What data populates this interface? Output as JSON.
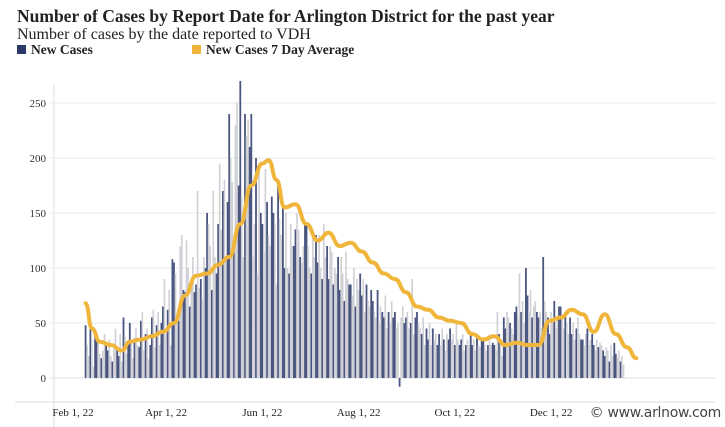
{
  "title": "Number of Cases by Report Date for Arlington District for the past year",
  "subtitle": "Number of cases by the date reported to VDH",
  "watermark": "© www.arlnow.com",
  "colors": {
    "new_cases": "#4a5580",
    "new_cases_alt": "#cfd0d6",
    "average": "#f0b63c",
    "grid": "#e8e8e8"
  },
  "chart_data": {
    "type": "bar",
    "legend": "top-left",
    "grid": true,
    "ylim": [
      0,
      270
    ],
    "xlim": [
      "2022-02-01",
      "2023-01-28"
    ],
    "y_ticks": [
      0,
      50,
      100,
      150,
      200,
      250
    ],
    "x_ticks": [
      {
        "date": "2022-02-01",
        "label": "Feb 1, 22"
      },
      {
        "date": "2022-04-01",
        "label": "Apr 1, 22"
      },
      {
        "date": "2022-06-01",
        "label": "Jun 1, 22"
      },
      {
        "date": "2022-08-01",
        "label": "Aug 1, 22"
      },
      {
        "date": "2022-10-01",
        "label": "Oct 1, 22"
      },
      {
        "date": "2022-12-01",
        "label": "Dec 1, 22"
      }
    ],
    "series": [
      {
        "name": "New Cases",
        "type": "bar",
        "start_date": "2022-02-09",
        "values": [
          48,
          30,
          20,
          45,
          35,
          10,
          40,
          40,
          35,
          22,
          18,
          25,
          40,
          30,
          25,
          35,
          20,
          15,
          30,
          45,
          28,
          20,
          40,
          15,
          55,
          38,
          22,
          30,
          50,
          35,
          18,
          36,
          45,
          30,
          28,
          52,
          60,
          25,
          40,
          45,
          17,
          30,
          55,
          62,
          28,
          48,
          60,
          30,
          50,
          65,
          90,
          40,
          62,
          80,
          30,
          108,
          105,
          95,
          55,
          52,
          120,
          130,
          80,
          78,
          125,
          100,
          65,
          90,
          110,
          78,
          85,
          170,
          82,
          90,
          72,
          110,
          100,
          150,
          140,
          120,
          80,
          170,
          110,
          95,
          140,
          195,
          135,
          170,
          180,
          110,
          160,
          240,
          200,
          178,
          120,
          230,
          250,
          175,
          270,
          165,
          110,
          240,
          220,
          235,
          210,
          240,
          110,
          140,
          200,
          95,
          190,
          150,
          140,
          115,
          190,
          160,
          130,
          120,
          165,
          150,
          140,
          85,
          175,
          145,
          130,
          160,
          100,
          150,
          100,
          95,
          140,
          120,
          120,
          135,
          150,
          135,
          110,
          105,
          120,
          140,
          140,
          120,
          100,
          95,
          130,
          110,
          130,
          105,
          130,
          100,
          90,
          140,
          110,
          120,
          90,
          120,
          115,
          85,
          100,
          95,
          110,
          80,
          110,
          95,
          70,
          115,
          90,
          85,
          85,
          75,
          100,
          65,
          90,
          80,
          95,
          75,
          90,
          60,
          85,
          70,
          65,
          80,
          70,
          60,
          55,
          80,
          50,
          65,
          60,
          55,
          75,
          45,
          60,
          50,
          70,
          55,
          60,
          45,
          50,
          -8,
          55,
          65,
          50,
          55,
          60,
          45,
          50,
          90,
          40,
          55,
          60,
          50,
          45,
          40,
          55,
          30,
          45,
          35,
          50,
          30,
          45,
          35,
          40,
          30,
          40,
          30,
          45,
          35,
          25,
          40,
          35,
          45,
          35,
          40,
          30,
          50,
          35,
          30,
          35,
          40,
          25,
          30,
          35,
          30,
          40,
          30,
          35,
          25,
          40,
          30,
          28,
          35,
          35,
          30,
          25,
          30,
          40,
          30,
          32,
          30,
          25,
          60,
          40,
          35,
          20,
          55,
          45,
          60,
          55,
          50,
          45,
          40,
          60,
          65,
          55,
          95,
          60,
          70,
          50,
          100,
          75,
          60,
          80,
          55,
          65,
          70,
          60,
          55,
          60,
          45,
          110,
          70,
          60,
          55,
          40,
          60,
          50,
          70,
          45,
          55,
          65,
          65,
          55,
          45,
          60,
          50,
          40,
          55,
          40,
          50,
          35,
          45,
          55,
          40,
          35,
          35,
          30,
          40,
          45,
          30,
          35,
          40,
          30,
          25,
          35,
          28,
          32,
          30,
          25,
          20,
          28,
          25,
          15,
          30,
          20,
          32,
          22,
          18,
          25,
          15,
          20,
          12
        ]
      },
      {
        "name": "New Cases 7 Day Average",
        "type": "line",
        "points": [
          [
            "2022-02-09",
            68
          ],
          [
            "2022-02-13",
            45
          ],
          [
            "2022-02-18",
            33
          ],
          [
            "2022-02-25",
            30
          ],
          [
            "2022-03-04",
            25
          ],
          [
            "2022-03-09",
            33
          ],
          [
            "2022-03-16",
            35
          ],
          [
            "2022-03-23",
            38
          ],
          [
            "2022-03-30",
            42
          ],
          [
            "2022-04-06",
            50
          ],
          [
            "2022-04-13",
            75
          ],
          [
            "2022-04-20",
            93
          ],
          [
            "2022-04-27",
            95
          ],
          [
            "2022-05-04",
            103
          ],
          [
            "2022-05-11",
            110
          ],
          [
            "2022-05-18",
            140
          ],
          [
            "2022-05-25",
            175
          ],
          [
            "2022-06-01",
            195
          ],
          [
            "2022-06-05",
            198
          ],
          [
            "2022-06-10",
            180
          ],
          [
            "2022-06-15",
            155
          ],
          [
            "2022-06-22",
            158
          ],
          [
            "2022-06-29",
            140
          ],
          [
            "2022-07-06",
            125
          ],
          [
            "2022-07-13",
            132
          ],
          [
            "2022-07-20",
            120
          ],
          [
            "2022-07-27",
            123
          ],
          [
            "2022-08-03",
            115
          ],
          [
            "2022-08-10",
            105
          ],
          [
            "2022-08-17",
            95
          ],
          [
            "2022-08-24",
            90
          ],
          [
            "2022-08-31",
            78
          ],
          [
            "2022-09-07",
            65
          ],
          [
            "2022-09-14",
            62
          ],
          [
            "2022-09-21",
            55
          ],
          [
            "2022-09-28",
            52
          ],
          [
            "2022-10-05",
            50
          ],
          [
            "2022-10-12",
            40
          ],
          [
            "2022-10-19",
            35
          ],
          [
            "2022-10-26",
            38
          ],
          [
            "2022-11-02",
            30
          ],
          [
            "2022-11-09",
            32
          ],
          [
            "2022-11-16",
            30
          ],
          [
            "2022-11-23",
            30
          ],
          [
            "2022-11-30",
            52
          ],
          [
            "2022-12-07",
            55
          ],
          [
            "2022-12-14",
            62
          ],
          [
            "2022-12-21",
            58
          ],
          [
            "2022-12-28",
            42
          ],
          [
            "2023-01-04",
            58
          ],
          [
            "2023-01-11",
            40
          ],
          [
            "2023-01-18",
            28
          ],
          [
            "2023-01-24",
            18
          ]
        ]
      }
    ]
  }
}
